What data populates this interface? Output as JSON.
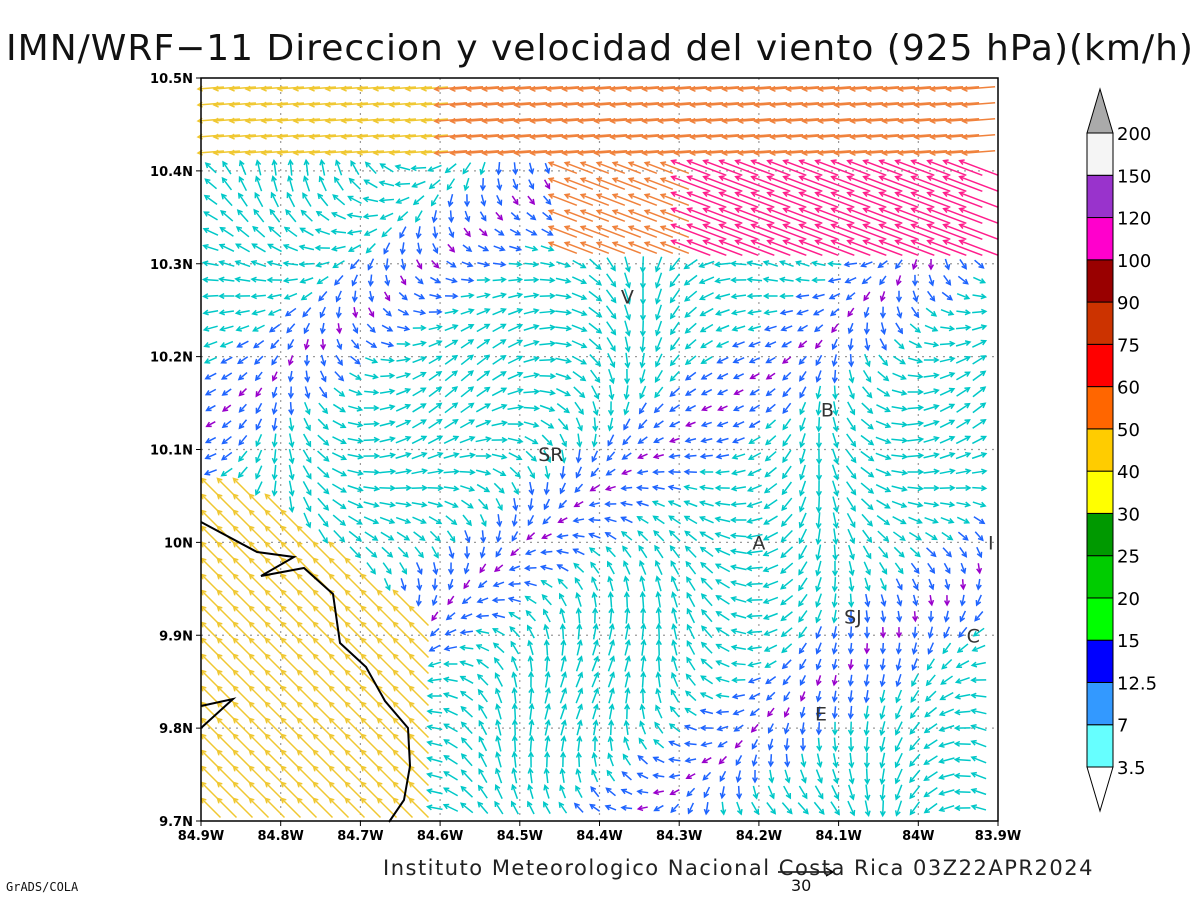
{
  "map": {
    "title": "IMN/WRF−11 Direccion y velocidad del viento (925 hPa)(km/h)",
    "footer": "Instituto Meteorologico Nacional Costa Rica 03Z22APR2024",
    "credit": "GrADS/COLA",
    "reference_vector": {
      "value": "30"
    },
    "lon_ticks": [
      "84.9W",
      "84.8W",
      "84.7W",
      "84.6W",
      "84.5W",
      "84.4W",
      "84.3W",
      "84.2W",
      "84.1W",
      "84W",
      "83.9W"
    ],
    "lat_ticks": [
      "9.7N",
      "9.8N",
      "9.9N",
      "10N",
      "10.1N",
      "10.2N",
      "10.3N",
      "10.4N",
      "10.5N"
    ],
    "lon_range": [
      -84.9,
      -83.9
    ],
    "lat_range": [
      9.7,
      10.5
    ],
    "stations": [
      {
        "label": "V",
        "lon": -84.365,
        "lat": 10.265
      },
      {
        "label": "B",
        "lon": -84.114,
        "lat": 10.143
      },
      {
        "label": "SR",
        "lon": -84.461,
        "lat": 10.095
      },
      {
        "label": "A",
        "lon": -84.2,
        "lat": 10.0
      },
      {
        "label": "I",
        "lon": -83.909,
        "lat": 10.0
      },
      {
        "label": "SJ",
        "lon": -84.082,
        "lat": 9.92
      },
      {
        "label": "C",
        "lon": -83.931,
        "lat": 9.9
      },
      {
        "label": "E",
        "lon": -84.122,
        "lat": 9.816
      }
    ]
  },
  "legend": {
    "labels": [
      "3.5",
      "7",
      "12.5",
      "15",
      "20",
      "25",
      "30",
      "40",
      "50",
      "60",
      "75",
      "90",
      "100",
      "120",
      "150",
      "200"
    ],
    "colors": [
      "#ffffff",
      "#66ffff",
      "#3399ff",
      "#0000ff",
      "#00ff00",
      "#00cc00",
      "#009900",
      "#ffff00",
      "#ffcc00",
      "#ff6600",
      "#ff0000",
      "#cc3300",
      "#990000",
      "#ff00cc",
      "#9933cc",
      "#f5f5f5",
      "#aaaaaa"
    ]
  },
  "colors": {
    "frame": "#000000",
    "grid": "#999999",
    "coast": "#000000"
  }
}
